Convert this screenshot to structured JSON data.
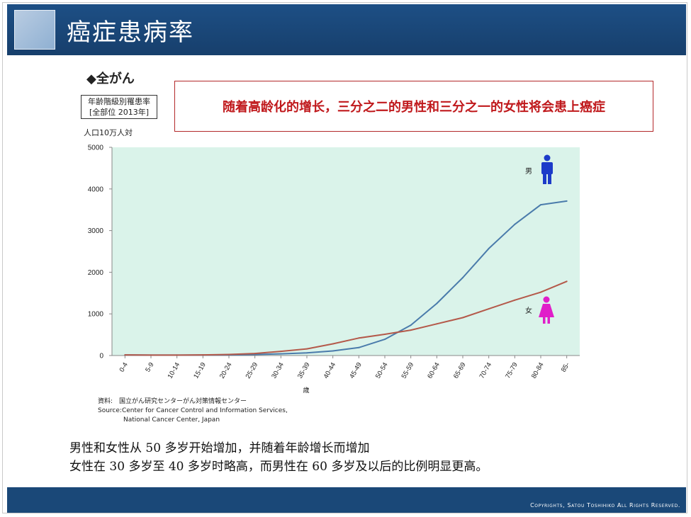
{
  "slide": {
    "title": "癌症患病率",
    "section": "◆全がん",
    "rate_box": {
      "line1": "年齢階級別罹患率",
      "line2": "[全部位 2013年]"
    },
    "unit": "人口10万人対",
    "callout": "随着高龄化的增长，三分之二的男性和三分之一的女性将会患上癌症",
    "source_lines": [
      "資料:　国立がん研究センターがん対策情報センター",
      "Source:Center for Cancer Control and Information Services,",
      "　　　　National Cancer Center, Japan"
    ],
    "body_lines": [
      "男性和女性从 50 多岁开始增加，并随着年龄增长而增加",
      "女性在 30 多岁至 40 多岁时略高，而男性在 60 多岁及以后的比例明显更高。"
    ],
    "footer": "Copyrights, Satou Toshihiko All Rights Reserved."
  },
  "colors": {
    "title_bar": "#1d4f85",
    "plot_bg": "#daf3ea",
    "male_line": "#4a7bab",
    "female_line": "#b4594a",
    "male_icon": "#1c3bc9",
    "female_icon": "#e01ec9",
    "callout_text": "#c0191c"
  },
  "chart_data": {
    "type": "line",
    "categories": [
      "0-4",
      "5-9",
      "10-14",
      "15-19",
      "20-24",
      "25-29",
      "30-34",
      "35-39",
      "40-44",
      "45-49",
      "50-54",
      "55-59",
      "60-64",
      "65-69",
      "70-74",
      "75-79",
      "80-84",
      "85-"
    ],
    "xlabel": "歳",
    "ylabel": "",
    "ylim": [
      0,
      5000
    ],
    "yticks": [
      0,
      1000,
      2000,
      3000,
      4000,
      5000
    ],
    "grid": false,
    "legend_placement": "inline labels at right",
    "series": [
      {
        "name": "男",
        "icon": "male-figure-icon",
        "color": "#4a7bab",
        "values": [
          15,
          10,
          10,
          12,
          15,
          25,
          40,
          65,
          110,
          190,
          390,
          730,
          1250,
          1870,
          2570,
          3150,
          3620,
          3710
        ]
      },
      {
        "name": "女",
        "icon": "female-figure-icon",
        "color": "#b4594a",
        "values": [
          15,
          10,
          10,
          15,
          25,
          50,
          100,
          160,
          280,
          420,
          510,
          610,
          760,
          910,
          1120,
          1330,
          1520,
          1780
        ]
      }
    ]
  }
}
